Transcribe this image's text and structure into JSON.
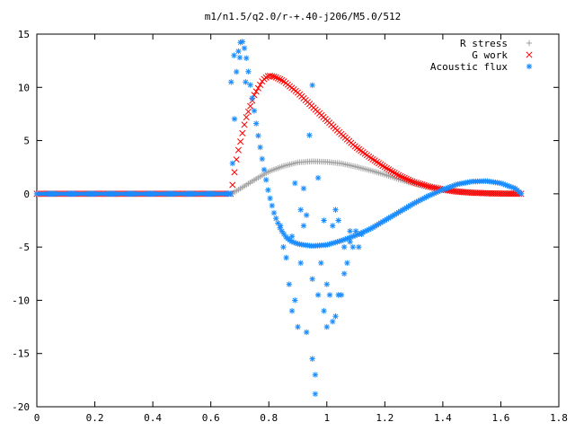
{
  "chart_data": {
    "type": "scatter",
    "title": "m1/n1.5/q2.0/r-+.40-j206/M5.0/512",
    "xlabel": "",
    "ylabel": "",
    "xlim": [
      0,
      1.8
    ],
    "ylim": [
      -20,
      15
    ],
    "xticks": [
      "0",
      "0.2",
      "0.4",
      "0.6",
      "0.8",
      "1",
      "1.2",
      "1.4",
      "1.6",
      "1.8"
    ],
    "yticks": [
      "15",
      "10",
      "5",
      "0",
      "-5",
      "-10",
      "-15",
      "-20"
    ],
    "grid": false,
    "legend_position": "top-right",
    "series": [
      {
        "name": "R stress",
        "marker": "+",
        "color": "#a0a0a0",
        "shape": "curve",
        "x": [
          0.0,
          0.6,
          0.67,
          0.69,
          0.72,
          0.75,
          0.8,
          0.85,
          0.9,
          0.95,
          1.0,
          1.05,
          1.1,
          1.15,
          1.2,
          1.25,
          1.3,
          1.35,
          1.4,
          1.45,
          1.5,
          1.55,
          1.6,
          1.65,
          1.67
        ],
        "y": [
          0.0,
          0.0,
          0.0,
          0.3,
          0.8,
          1.3,
          2.1,
          2.6,
          2.95,
          3.05,
          3.0,
          2.85,
          2.55,
          2.2,
          1.8,
          1.35,
          0.95,
          0.65,
          0.4,
          0.25,
          0.15,
          0.08,
          0.04,
          0.01,
          0.0
        ]
      },
      {
        "name": "G work",
        "marker": "x",
        "color": "#ff0000",
        "shape": "curve",
        "x": [
          0.0,
          0.6,
          0.67,
          0.69,
          0.72,
          0.75,
          0.78,
          0.8,
          0.82,
          0.85,
          0.9,
          0.95,
          1.0,
          1.05,
          1.1,
          1.15,
          1.2,
          1.25,
          1.3,
          1.35,
          1.4,
          1.45,
          1.5,
          1.55,
          1.6,
          1.65,
          1.67
        ],
        "y": [
          0.0,
          0.0,
          0.0,
          3.5,
          7.0,
          9.3,
          10.7,
          11.1,
          11.0,
          10.6,
          9.5,
          8.2,
          6.9,
          5.6,
          4.4,
          3.4,
          2.5,
          1.7,
          1.1,
          0.7,
          0.4,
          0.2,
          0.1,
          0.05,
          0.02,
          0.01,
          0.0
        ]
      },
      {
        "name": "Acoustic flux",
        "marker": "*",
        "color": "#1a8cff",
        "shape": "curve",
        "x": [
          0.0,
          0.6,
          0.67,
          0.68,
          0.69,
          0.7,
          0.71,
          0.72,
          0.74,
          0.76,
          0.78,
          0.8,
          0.82,
          0.84,
          0.86,
          0.88,
          0.9,
          0.92,
          0.95,
          1.0,
          1.05,
          1.1,
          1.15,
          1.2,
          1.25,
          1.3,
          1.35,
          1.4,
          1.45,
          1.5,
          1.55,
          1.6,
          1.65,
          1.67
        ],
        "y": [
          0.0,
          0.0,
          0.0,
          6.0,
          12.5,
          14.2,
          14.3,
          13.2,
          9.5,
          6.0,
          2.8,
          0.0,
          -2.0,
          -3.3,
          -4.1,
          -4.5,
          -4.7,
          -4.8,
          -4.9,
          -4.8,
          -4.4,
          -3.9,
          -3.3,
          -2.5,
          -1.7,
          -0.9,
          -0.2,
          0.4,
          0.9,
          1.15,
          1.2,
          1.0,
          0.5,
          0.0
        ]
      },
      {
        "name": "",
        "marker": "*",
        "color": "#1a8cff",
        "shape": "scatter",
        "x": [
          0.67,
          0.68,
          0.7,
          0.72,
          0.84,
          0.85,
          0.86,
          0.87,
          0.88,
          0.88,
          0.89,
          0.89,
          0.9,
          0.91,
          0.91,
          0.92,
          0.92,
          0.93,
          0.93,
          0.94,
          0.95,
          0.95,
          0.95,
          0.96,
          0.96,
          0.97,
          0.97,
          0.98,
          0.99,
          0.99,
          1.0,
          1.0,
          1.01,
          1.02,
          1.02,
          1.03,
          1.03,
          1.04,
          1.04,
          1.05,
          1.06,
          1.06,
          1.07,
          1.08,
          1.08,
          1.09,
          1.1,
          1.11,
          1.12
        ],
        "y": [
          10.5,
          13.0,
          12.8,
          10.5,
          -3.0,
          -5.0,
          -6.0,
          -8.5,
          -11.0,
          -4.0,
          -10.0,
          1.0,
          -12.5,
          -1.5,
          -6.5,
          0.5,
          -3.0,
          -2.0,
          -13.0,
          5.5,
          -15.5,
          -8.0,
          10.2,
          -17.0,
          -18.8,
          -9.5,
          1.5,
          -6.5,
          -11.0,
          -2.5,
          -12.5,
          -8.5,
          -9.5,
          -3.0,
          -12.0,
          -1.5,
          -11.5,
          -9.5,
          -2.5,
          -9.5,
          -5.0,
          -7.5,
          -6.5,
          -4.5,
          -3.5,
          -5.0,
          -3.5,
          -5.0,
          -3.8
        ]
      }
    ]
  }
}
